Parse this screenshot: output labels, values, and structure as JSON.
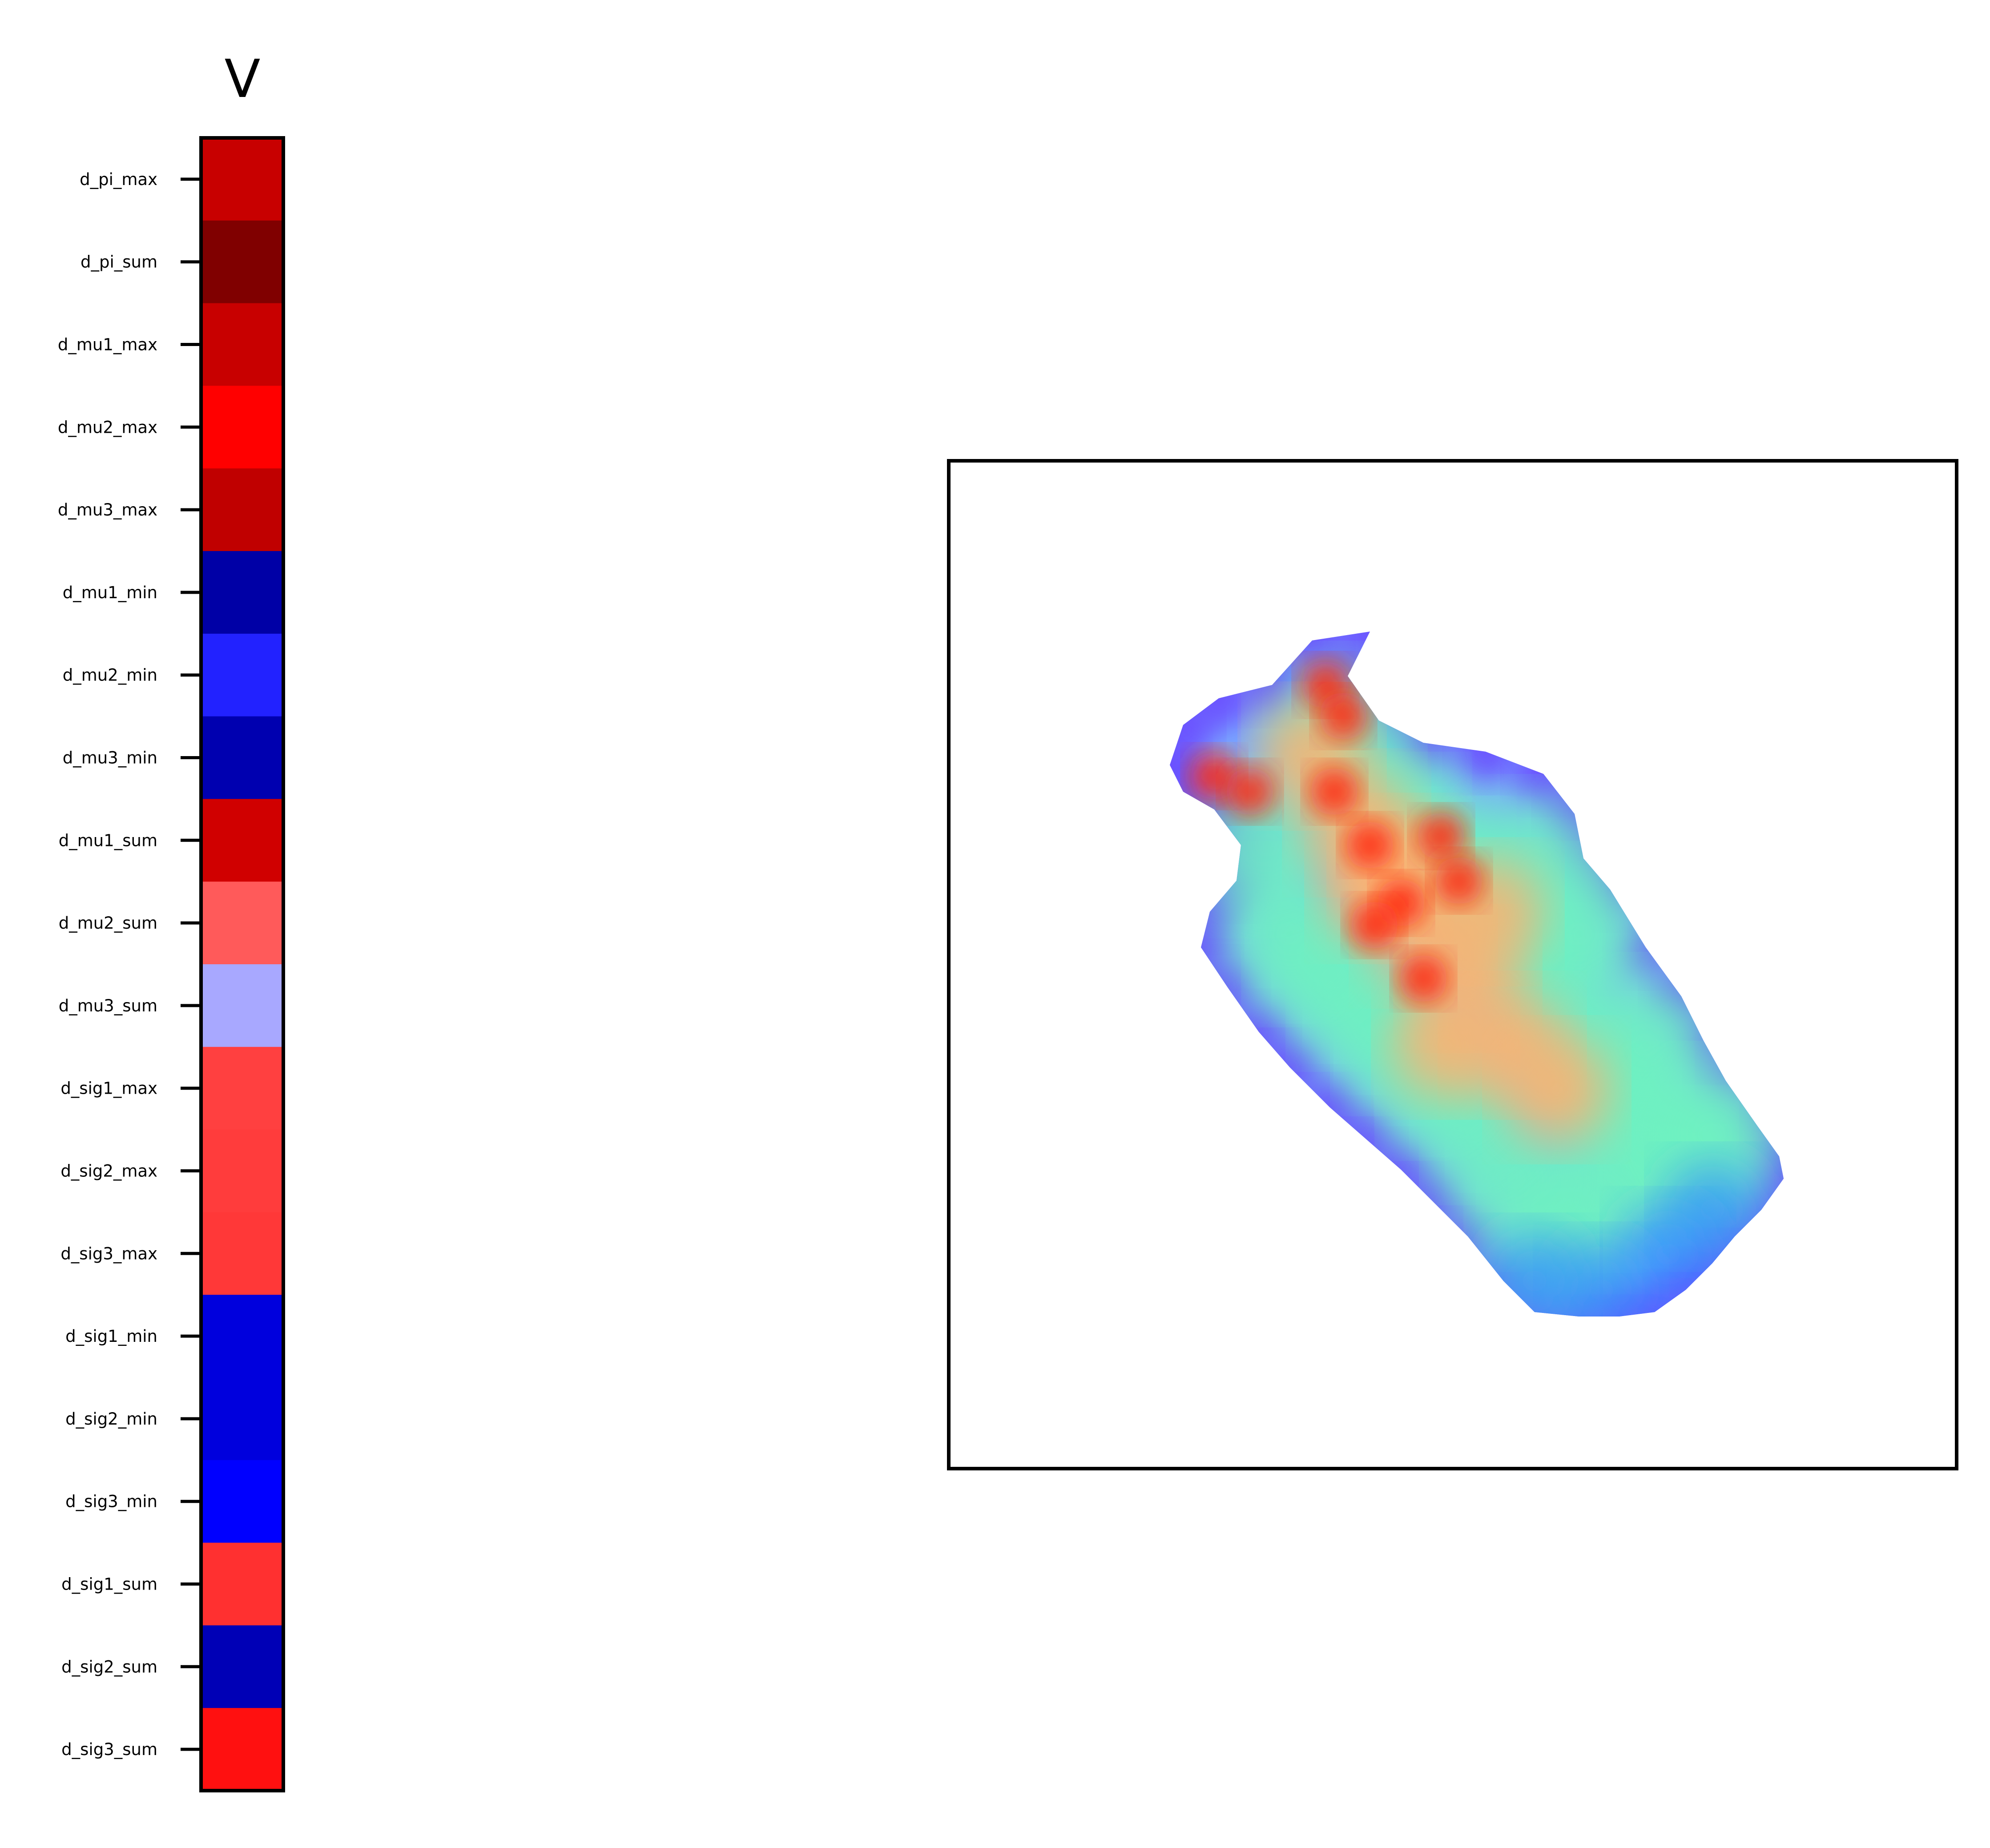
{
  "chart_data": [
    {
      "type": "heatmap",
      "title": "V",
      "xlabel": "",
      "ylabel": "",
      "categories": [
        "d_pi_max",
        "d_pi_sum",
        "d_mu1_max",
        "d_mu2_max",
        "d_mu3_max",
        "d_mu1_min",
        "d_mu2_min",
        "d_mu3_min",
        "d_mu1_sum",
        "d_mu2_sum",
        "d_mu3_sum",
        "d_sig1_max",
        "d_sig2_max",
        "d_sig3_max",
        "d_sig1_min",
        "d_sig2_min",
        "d_sig3_min",
        "d_sig1_sum",
        "d_sig2_sum",
        "d_sig3_sum"
      ],
      "colors": [
        "#c80000",
        "#800000",
        "#c80000",
        "#ff0000",
        "#c00000",
        "#0000a6",
        "#2222ff",
        "#0000b0",
        "#d00000",
        "#ff5a5a",
        "#a8a8ff",
        "#ff4040",
        "#ff3c3c",
        "#ff3838",
        "#0000dd",
        "#0000dd",
        "#0000ff",
        "#ff3030",
        "#0000b6",
        "#ff1010"
      ],
      "colormap": "bwr",
      "grid": false,
      "legend": "none"
    },
    {
      "type": "heatmap",
      "title": "",
      "xlabel": "",
      "ylabel": "",
      "colormap": "rainbow",
      "grid": false,
      "legend": "none",
      "content": "molecular surface rendering colored by value (blue = low, red = high)"
    }
  ]
}
